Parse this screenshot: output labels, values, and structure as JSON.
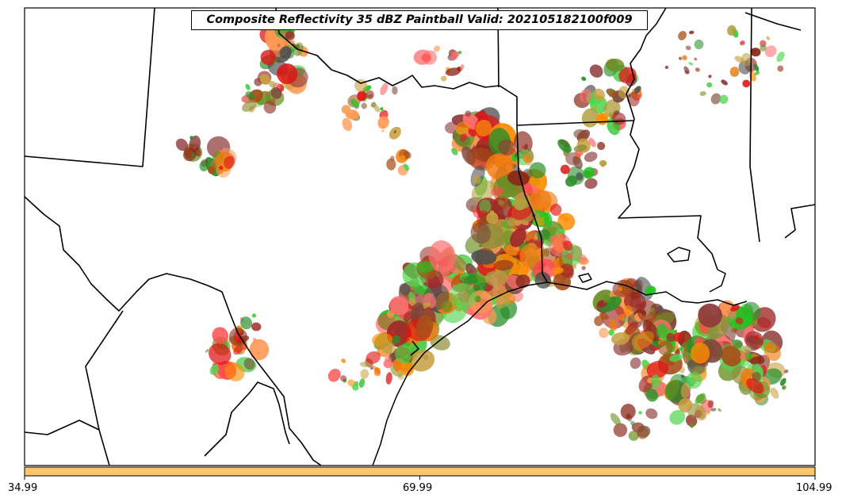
{
  "title": "Composite Reflectivity 35 dBZ Paintball Valid: 202105182100f009",
  "colorbar": {
    "color": "#fec56b",
    "ticks": [
      "34.99",
      "69.99",
      "104.99"
    ]
  },
  "colors": {
    "paintball": [
      "#ff8c00",
      "#f07c10",
      "#ff9a55",
      "#a8501a",
      "#8b2a1a",
      "#8e3a3a",
      "#a02828",
      "#e01515",
      "#ff4a4a",
      "#ff7070",
      "#22c422",
      "#4fd64f",
      "#2a8e2a",
      "#6b8e23",
      "#8e8e3a",
      "#b0a040",
      "#505050",
      "#7a4a3a",
      "#c8a040"
    ],
    "borders": "#000000",
    "background": "#ffffff"
  }
}
